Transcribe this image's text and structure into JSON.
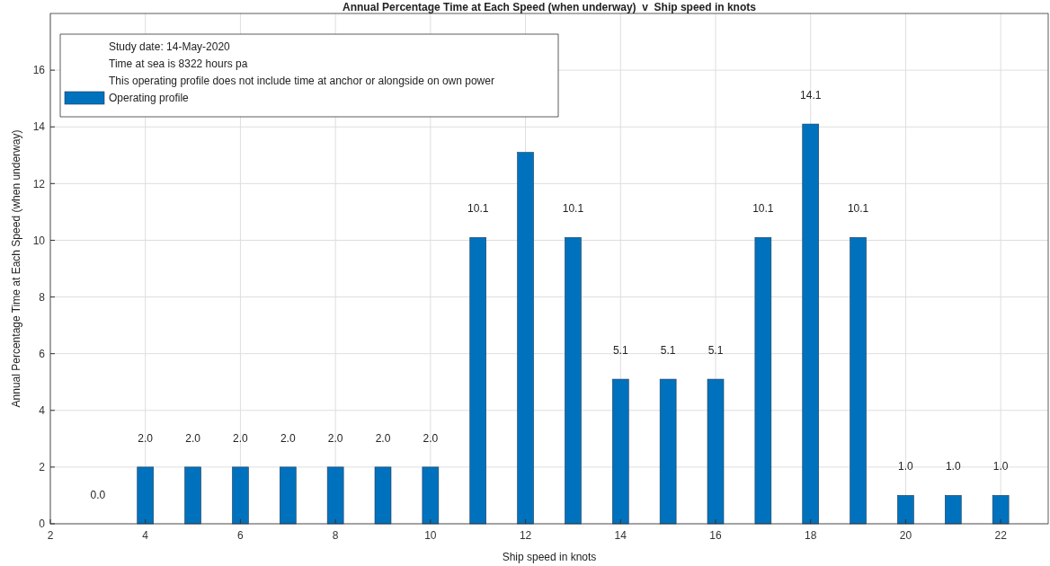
{
  "chart_data": {
    "type": "bar",
    "title": "Annual Percentage Time at Each Speed (when underway)  v  Ship speed in knots",
    "xlabel": "Ship speed in knots",
    "ylabel": "Annual Percentage Time at Each Speed (when underway)",
    "annotations": [
      "Study date: 14-May-2020",
      "Time at sea is 8322 hours pa",
      "This operating profile does not include time at anchor or alongside on own power"
    ],
    "x": [
      3,
      4,
      5,
      6,
      7,
      8,
      9,
      10,
      11,
      12,
      13,
      14,
      15,
      16,
      17,
      18,
      19,
      20,
      21,
      22
    ],
    "series": [
      {
        "name": "Operating profile",
        "color": "#0072bd",
        "values": [
          0,
          2,
          2,
          2,
          2,
          2,
          2,
          2,
          10.1,
          13.1,
          10.1,
          5.1,
          5.1,
          5.1,
          10.1,
          14.1,
          10.1,
          1,
          1,
          1
        ],
        "value_labels": [
          "0.0",
          "2.0",
          "2.0",
          "2.0",
          "2.0",
          "2.0",
          "2.0",
          "2.0",
          "10.1",
          null,
          "10.1",
          "5.1",
          "5.1",
          "5.1",
          "10.1",
          "14.1",
          "10.1",
          "1.0",
          "1.0",
          "1.0"
        ]
      }
    ],
    "xlim": [
      2,
      23
    ],
    "xticks": [
      2,
      4,
      6,
      8,
      10,
      12,
      14,
      16,
      18,
      20,
      22
    ],
    "ylim": [
      0,
      18
    ],
    "yticks": [
      0,
      2,
      4,
      6,
      8,
      10,
      12,
      14,
      16
    ],
    "grid": true,
    "legend": "top left"
  }
}
